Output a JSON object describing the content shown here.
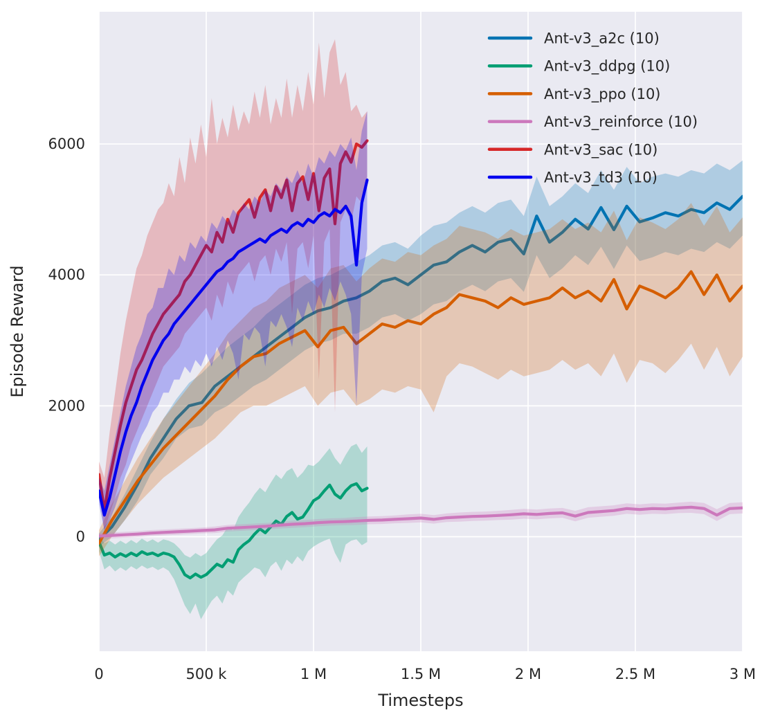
{
  "figure": {
    "plot_background": "#eaeaf2",
    "grid_color": "#ffffff",
    "text_color": "#262626",
    "band_opacity": 0.25
  },
  "chart_data": {
    "type": "line",
    "title": "",
    "xlabel": "Timesteps",
    "ylabel": "Episode Reward",
    "xlim": [
      0,
      3000000
    ],
    "ylim": [
      -1750,
      8020
    ],
    "grid": true,
    "x_ticks": [
      {
        "value": 0,
        "label": "0"
      },
      {
        "value": 500000,
        "label": "500 k"
      },
      {
        "value": 1000000,
        "label": "1 M"
      },
      {
        "value": 1500000,
        "label": "1.5 M"
      },
      {
        "value": 2000000,
        "label": "2 M"
      },
      {
        "value": 2500000,
        "label": "2.5 M"
      },
      {
        "value": 3000000,
        "label": "3 M"
      }
    ],
    "y_ticks": [
      {
        "value": 0,
        "label": "0"
      },
      {
        "value": 2000,
        "label": "2000"
      },
      {
        "value": 4000,
        "label": "4000"
      },
      {
        "value": 6000,
        "label": "6000"
      }
    ],
    "legend": {
      "position": "upper-right",
      "entries": [
        "Ant-v3_a2c (10)",
        "Ant-v3_ddpg (10)",
        "Ant-v3_ppo (10)",
        "Ant-v3_reinforce (10)",
        "Ant-v3_sac (10)",
        "Ant-v3_td3 (10)"
      ]
    },
    "series": [
      {
        "name": "Ant-v3_a2c (10)",
        "color": "#0173b2",
        "x_start": 0,
        "x_step": 60000,
        "values": [
          -50,
          150,
          450,
          800,
          1200,
          1500,
          1800,
          2000,
          2050,
          2300,
          2450,
          2600,
          2750,
          2900,
          3050,
          3200,
          3350,
          3450,
          3500,
          3600,
          3650,
          3750,
          3900,
          3950,
          3850,
          4000,
          4150,
          4200,
          4350,
          4450,
          4350,
          4500,
          4550,
          4320,
          4900,
          4500,
          4650,
          4850,
          4700,
          5030,
          4690,
          5050,
          4810,
          4870,
          4950,
          4900,
          5000,
          4950,
          5100,
          5000,
          5200
        ],
        "band_upper": [
          50,
          300,
          650,
          1050,
          1450,
          1800,
          2100,
          2350,
          2500,
          2700,
          2900,
          3050,
          3200,
          3400,
          3550,
          3700,
          3850,
          3950,
          4000,
          4100,
          4200,
          4300,
          4450,
          4500,
          4400,
          4600,
          4750,
          4800,
          4950,
          5050,
          4950,
          5100,
          5150,
          4900,
          5500,
          5050,
          5200,
          5400,
          5250,
          5600,
          5300,
          5650,
          5400,
          5500,
          5550,
          5500,
          5600,
          5550,
          5700,
          5600,
          5750
        ],
        "band_lower": [
          -150,
          0,
          250,
          550,
          950,
          1200,
          1500,
          1650,
          1700,
          1900,
          2000,
          2150,
          2300,
          2400,
          2550,
          2700,
          2850,
          2950,
          3000,
          3100,
          3100,
          3200,
          3350,
          3400,
          3300,
          3400,
          3550,
          3600,
          3750,
          3850,
          3750,
          3900,
          3950,
          3740,
          4300,
          3950,
          4100,
          4300,
          4150,
          4430,
          4090,
          4450,
          4210,
          4270,
          4350,
          4300,
          4400,
          4350,
          4500,
          4400,
          4600
        ]
      },
      {
        "name": "Ant-v3_ddpg (10)",
        "color": "#029e73",
        "x_start": 0,
        "x_step": 25000,
        "values": [
          -80,
          -280,
          -250,
          -310,
          -260,
          -300,
          -250,
          -290,
          -230,
          -270,
          -250,
          -290,
          -250,
          -270,
          -310,
          -430,
          -580,
          -630,
          -570,
          -620,
          -580,
          -500,
          -420,
          -460,
          -350,
          -390,
          -200,
          -120,
          -60,
          40,
          120,
          60,
          150,
          240,
          190,
          310,
          370,
          270,
          300,
          420,
          550,
          600,
          700,
          790,
          650,
          590,
          700,
          780,
          810,
          700,
          740
        ],
        "band_upper": [
          20,
          -100,
          -60,
          -120,
          -60,
          -110,
          -50,
          -100,
          -30,
          -80,
          -40,
          -90,
          -40,
          -60,
          -100,
          -180,
          -280,
          -320,
          -250,
          -300,
          -250,
          -140,
          -40,
          20,
          150,
          100,
          300,
          420,
          520,
          650,
          750,
          680,
          820,
          950,
          880,
          1000,
          1050,
          900,
          980,
          1100,
          1080,
          1150,
          1250,
          1350,
          1200,
          1100,
          1250,
          1380,
          1420,
          1280,
          1380
        ],
        "band_lower": [
          -220,
          -500,
          -440,
          -530,
          -470,
          -520,
          -450,
          -500,
          -440,
          -490,
          -460,
          -510,
          -470,
          -520,
          -650,
          -850,
          -1050,
          -1180,
          -1020,
          -1260,
          -1120,
          -980,
          -900,
          -1020,
          -820,
          -900,
          -700,
          -620,
          -550,
          -470,
          -500,
          -620,
          -450,
          -380,
          -520,
          -350,
          -420,
          -300,
          -380,
          -220,
          -150,
          -100,
          -60,
          -30,
          -250,
          -400,
          -120,
          -60,
          -40,
          -130,
          -80
        ]
      },
      {
        "name": "Ant-v3_ppo (10)",
        "color": "#d55e00",
        "x_start": 0,
        "x_step": 60000,
        "values": [
          -100,
          250,
          550,
          850,
          1100,
          1350,
          1550,
          1750,
          1950,
          2150,
          2400,
          2600,
          2750,
          2800,
          2950,
          3050,
          3150,
          2900,
          3150,
          3200,
          2950,
          3100,
          3250,
          3200,
          3300,
          3250,
          3400,
          3500,
          3700,
          3650,
          3600,
          3500,
          3650,
          3550,
          3600,
          3650,
          3800,
          3650,
          3750,
          3600,
          3930,
          3480,
          3830,
          3750,
          3650,
          3800,
          4050,
          3700,
          4000,
          3600,
          3830
        ],
        "band_upper": [
          100,
          500,
          850,
          1200,
          1500,
          1800,
          2050,
          2300,
          2550,
          2800,
          3100,
          3300,
          3500,
          3600,
          3800,
          3900,
          4000,
          3800,
          4100,
          4150,
          3900,
          4100,
          4250,
          4200,
          4350,
          4300,
          4450,
          4550,
          4750,
          4700,
          4650,
          4550,
          4700,
          4600,
          4650,
          4700,
          4850,
          4700,
          4800,
          4650,
          4980,
          4530,
          4880,
          4800,
          4700,
          4850,
          5100,
          4750,
          5050,
          4650,
          4880
        ],
        "band_lower": [
          -300,
          0,
          250,
          500,
          700,
          900,
          1050,
          1200,
          1350,
          1500,
          1700,
          1900,
          2000,
          2000,
          2100,
          2200,
          2300,
          2000,
          2200,
          2250,
          2000,
          2100,
          2250,
          2200,
          2300,
          2250,
          1900,
          2450,
          2650,
          2600,
          2500,
          2400,
          2550,
          2450,
          2500,
          2550,
          2700,
          2550,
          2650,
          2450,
          2800,
          2350,
          2700,
          2650,
          2500,
          2700,
          2950,
          2550,
          2900,
          2450,
          2750
        ]
      },
      {
        "name": "Ant-v3_reinforce (10)",
        "color": "#cc78bc",
        "x_start": 0,
        "x_step": 60000,
        "values": [
          10,
          20,
          30,
          40,
          55,
          65,
          75,
          85,
          95,
          105,
          130,
          140,
          150,
          160,
          175,
          190,
          200,
          215,
          225,
          230,
          240,
          250,
          255,
          265,
          275,
          285,
          265,
          290,
          300,
          310,
          315,
          325,
          335,
          350,
          340,
          355,
          365,
          315,
          370,
          385,
          400,
          430,
          415,
          430,
          425,
          440,
          450,
          430,
          330,
          430,
          440
        ],
        "band_upper": [
          55,
          65,
          75,
          85,
          100,
          110,
          120,
          130,
          140,
          155,
          180,
          190,
          200,
          210,
          225,
          245,
          255,
          270,
          280,
          285,
          300,
          310,
          315,
          325,
          340,
          350,
          330,
          355,
          370,
          380,
          385,
          395,
          410,
          425,
          415,
          430,
          440,
          395,
          450,
          465,
          480,
          510,
          495,
          510,
          505,
          520,
          535,
          515,
          420,
          515,
          525
        ],
        "band_lower": [
          -35,
          -25,
          -15,
          -5,
          10,
          20,
          30,
          40,
          50,
          55,
          80,
          90,
          100,
          110,
          125,
          135,
          145,
          160,
          170,
          175,
          180,
          190,
          195,
          205,
          210,
          220,
          200,
          225,
          230,
          240,
          245,
          255,
          260,
          275,
          265,
          280,
          290,
          235,
          290,
          305,
          320,
          350,
          335,
          350,
          345,
          360,
          365,
          345,
          240,
          345,
          355
        ]
      },
      {
        "name": "Ant-v3_sac (10)",
        "color": "#d62728",
        "x_start": 0,
        "x_step": 25000,
        "values": [
          950,
          400,
          900,
          1300,
          1700,
          2050,
          2300,
          2550,
          2700,
          2900,
          3100,
          3250,
          3400,
          3500,
          3600,
          3700,
          3900,
          4000,
          4150,
          4300,
          4450,
          4350,
          4650,
          4500,
          4850,
          4650,
          4950,
          5050,
          5150,
          4880,
          5180,
          5300,
          4980,
          5350,
          5180,
          5450,
          4980,
          5400,
          5500,
          5150,
          5550,
          4980,
          5480,
          5620,
          4780,
          5700,
          5880,
          5720,
          6000,
          5950,
          6050
        ],
        "band_upper": [
          1150,
          900,
          1600,
          2200,
          2800,
          3300,
          3700,
          4100,
          4300,
          4600,
          4800,
          5000,
          5100,
          5400,
          5200,
          5800,
          5400,
          6100,
          5700,
          6300,
          5800,
          6700,
          6000,
          6400,
          6100,
          6600,
          6200,
          6500,
          6300,
          6800,
          6400,
          6900,
          6300,
          6700,
          6400,
          7000,
          6400,
          6900,
          6500,
          7100,
          6600,
          7550,
          6700,
          7400,
          7600,
          6900,
          7100,
          6500,
          6600,
          6400,
          6500
        ],
        "band_lower": [
          650,
          100,
          350,
          600,
          900,
          1100,
          1400,
          1600,
          1800,
          2000,
          2200,
          2400,
          2600,
          2700,
          2800,
          2900,
          3100,
          3200,
          3300,
          3400,
          3500,
          3300,
          3700,
          3500,
          3900,
          3700,
          4000,
          4100,
          4200,
          3900,
          4200,
          4300,
          4000,
          4400,
          4200,
          4500,
          3400,
          4400,
          4500,
          4100,
          4600,
          2400,
          4500,
          4700,
          1900,
          4800,
          5000,
          4800,
          5200,
          5100,
          5400
        ]
      },
      {
        "name": "Ant-v3_td3 (10)",
        "color": "#0202ee",
        "x_start": 0,
        "x_step": 25000,
        "values": [
          700,
          330,
          600,
          950,
          1300,
          1600,
          1850,
          2050,
          2300,
          2500,
          2700,
          2850,
          3000,
          3100,
          3250,
          3350,
          3450,
          3550,
          3650,
          3750,
          3850,
          3950,
          4050,
          4100,
          4200,
          4250,
          4350,
          4400,
          4450,
          4500,
          4550,
          4500,
          4600,
          4650,
          4700,
          4650,
          4750,
          4800,
          4750,
          4850,
          4800,
          4900,
          4950,
          4900,
          5000,
          4950,
          5050,
          4900,
          4150,
          5100,
          5450
        ],
        "band_upper": [
          900,
          700,
          1100,
          1500,
          1900,
          2300,
          2600,
          2900,
          3100,
          3400,
          3500,
          3800,
          3800,
          4100,
          4000,
          4300,
          4200,
          4500,
          4400,
          4600,
          4500,
          4800,
          4700,
          4900,
          4800,
          5000,
          4900,
          5100,
          5000,
          5200,
          5100,
          5300,
          5200,
          5400,
          5300,
          5500,
          5400,
          5600,
          5400,
          5700,
          5500,
          5800,
          5700,
          5900,
          5800,
          6000,
          5900,
          6100,
          5600,
          6200,
          6500
        ],
        "band_lower": [
          500,
          100,
          250,
          450,
          700,
          950,
          1150,
          1350,
          1550,
          1700,
          1900,
          2000,
          2200,
          2200,
          2400,
          2400,
          2600,
          2500,
          2700,
          2600,
          2800,
          2600,
          2900,
          2700,
          3000,
          2800,
          2400,
          3100,
          3000,
          3200,
          3100,
          2600,
          3300,
          3200,
          3400,
          3200,
          2900,
          3500,
          3300,
          3600,
          3400,
          3700,
          3500,
          3800,
          3600,
          3900,
          3700,
          3400,
          2000,
          4000,
          4400
        ]
      }
    ]
  }
}
